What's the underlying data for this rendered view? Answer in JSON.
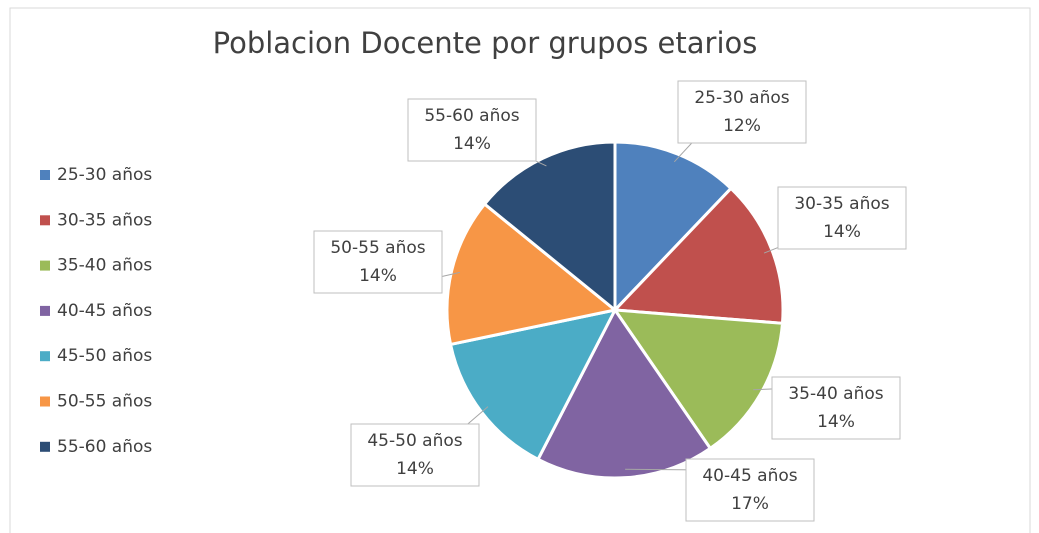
{
  "chart_data": {
    "type": "pie",
    "title": "Poblacion Docente por grupos etarios",
    "categories": [
      "25-30 años",
      "30-35 años",
      "35-40 años",
      "40-45 años",
      "45-50 años",
      "50-55 años",
      "55-60 años"
    ],
    "values": [
      12,
      14,
      14,
      17,
      14,
      14,
      14
    ],
    "value_labels": [
      "12%",
      "14%",
      "14%",
      "17%",
      "14%",
      "14%",
      "14%"
    ],
    "colors": [
      "#4f81bd",
      "#c0504d",
      "#9bbb59",
      "#8064a2",
      "#4bacc6",
      "#f79646",
      "#2c4d75"
    ],
    "legend": "left"
  }
}
